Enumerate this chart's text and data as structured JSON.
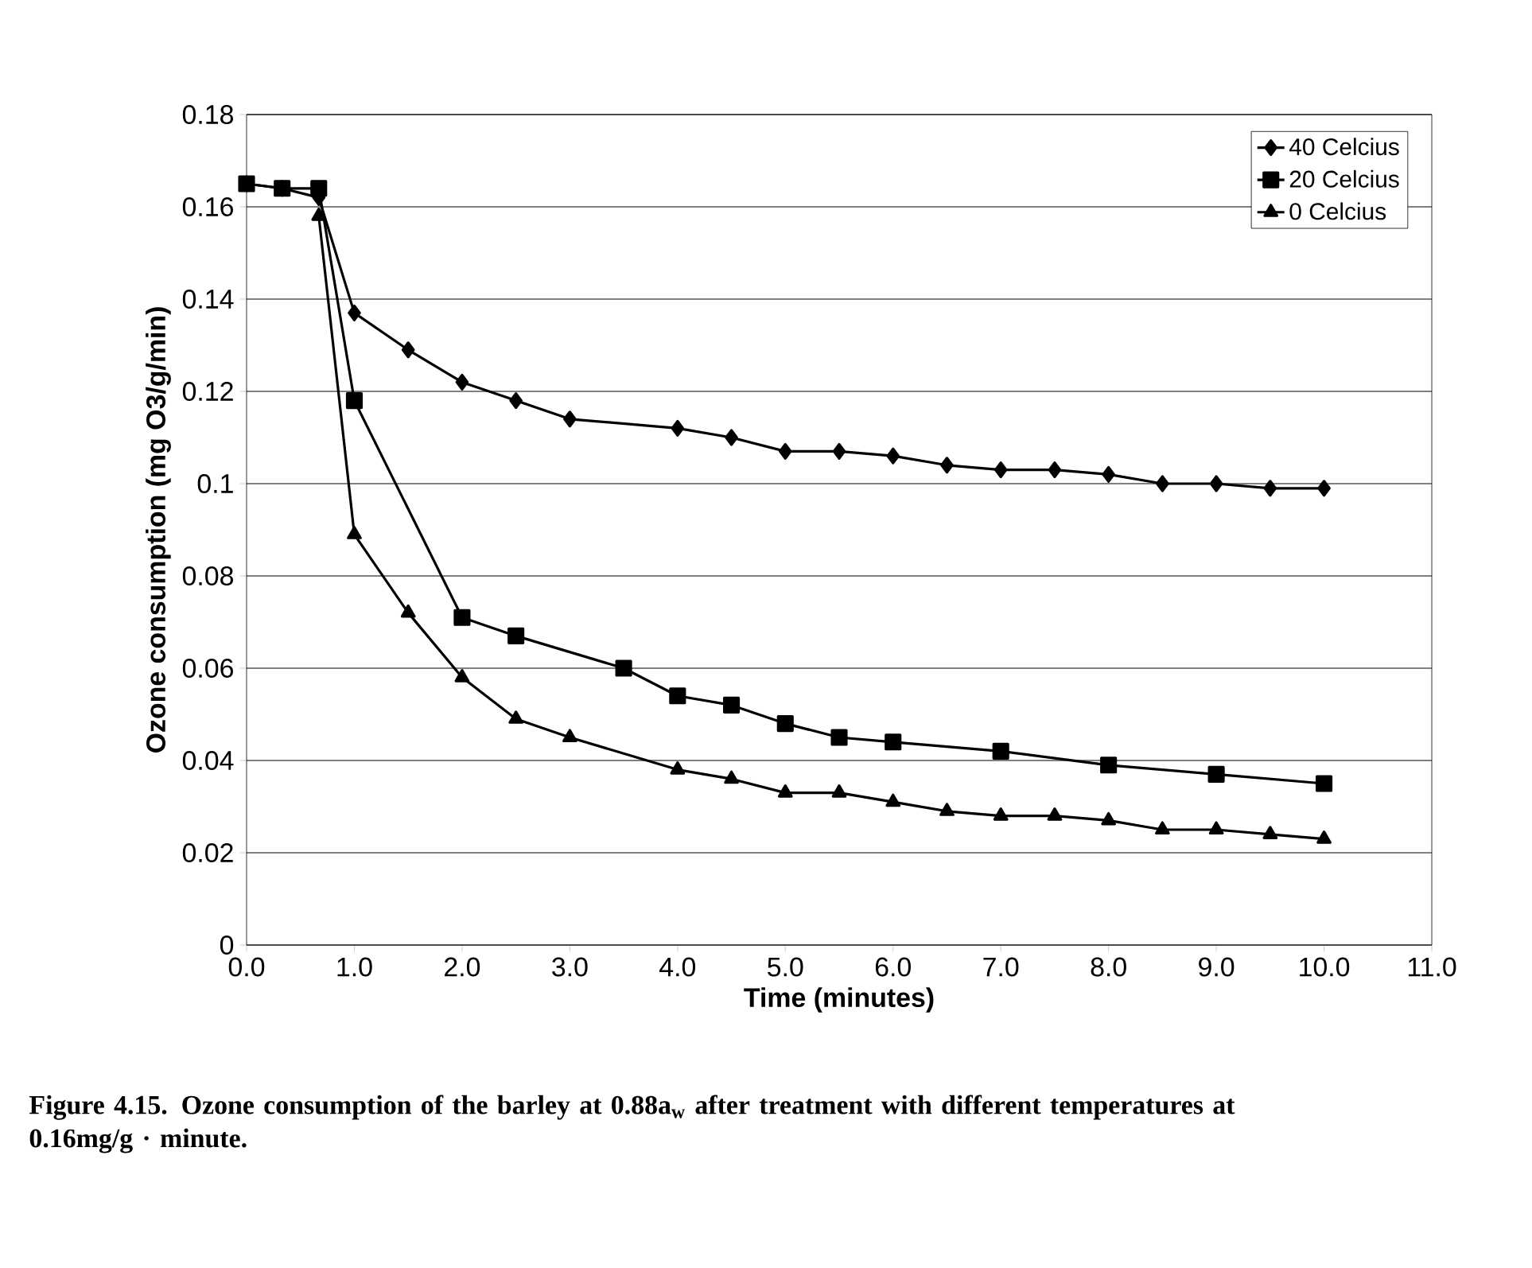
{
  "chart_data": {
    "type": "line",
    "xlabel": "Time (minutes)",
    "ylabel": "Ozone consumption (mg O3/g/min)",
    "annotations": [
      "Figure 4.15.  Ozone consumption of the barley at 0.88a$_{w}$ after treatment with different temperatures at 0.16mg/g · minute."
    ],
    "xlim": [
      0,
      11
    ],
    "xticks": [
      {
        "value": 0,
        "label": "0.0"
      },
      {
        "value": 1,
        "label": "1.0"
      },
      {
        "value": 2,
        "label": "2.0"
      },
      {
        "value": 3,
        "label": "3.0"
      },
      {
        "value": 4,
        "label": "4.0"
      },
      {
        "value": 5,
        "label": "5.0"
      },
      {
        "value": 6,
        "label": "6.0"
      },
      {
        "value": 7,
        "label": "7.0"
      },
      {
        "value": 8,
        "label": "8.0"
      },
      {
        "value": 9,
        "label": "9.0"
      },
      {
        "value": 10,
        "label": "10.0"
      },
      {
        "value": 11,
        "label": "11.0"
      }
    ],
    "ylim": [
      0,
      0.18
    ],
    "yticks": [
      0,
      0.02,
      0.04,
      0.06,
      0.08,
      0.1,
      0.12,
      0.14,
      0.16,
      0.18
    ],
    "grid": "y",
    "legend": "top right",
    "line_style": "solid",
    "series": [
      {
        "name": "40 Celcius",
        "color": "#000000",
        "marker": "diamond",
        "x": [
          0,
          0.33,
          0.67,
          1,
          1.5,
          2,
          2.5,
          3,
          4,
          4.5,
          5,
          5.5,
          6,
          6.5,
          7,
          7.5,
          8,
          8.5,
          9,
          9.5,
          10
        ],
        "values": [
          0.165,
          0.164,
          0.162,
          0.137,
          0.129,
          0.122,
          0.118,
          0.114,
          0.112,
          0.11,
          0.107,
          0.107,
          0.106,
          0.104,
          0.103,
          0.103,
          0.102,
          0.1,
          0.1,
          0.099,
          0.099
        ]
      },
      {
        "name": "20 Celcius",
        "color": "#000000",
        "marker": "square",
        "x": [
          0,
          0.33,
          0.67,
          1,
          2,
          2.5,
          3.5,
          4,
          4.5,
          5,
          5.5,
          6,
          7,
          8,
          9,
          10
        ],
        "values": [
          0.165,
          0.164,
          0.164,
          0.118,
          0.071,
          0.067,
          0.06,
          0.054,
          0.052,
          0.048,
          0.045,
          0.044,
          0.042,
          0.039,
          0.037,
          0.035
        ]
      },
      {
        "name": "0 Celcius",
        "color": "#000000",
        "marker": "triangle",
        "x": [
          0.67,
          1,
          1.5,
          2,
          2.5,
          3,
          4,
          4.5,
          5,
          5.5,
          6,
          6.5,
          7,
          7.5,
          8,
          8.5,
          9,
          9.5,
          10
        ],
        "values": [
          0.158,
          0.089,
          0.072,
          0.058,
          0.049,
          0.045,
          0.038,
          0.036,
          0.033,
          0.033,
          0.031,
          0.029,
          0.028,
          0.028,
          0.027,
          0.025,
          0.025,
          0.024,
          0.023
        ]
      }
    ]
  }
}
